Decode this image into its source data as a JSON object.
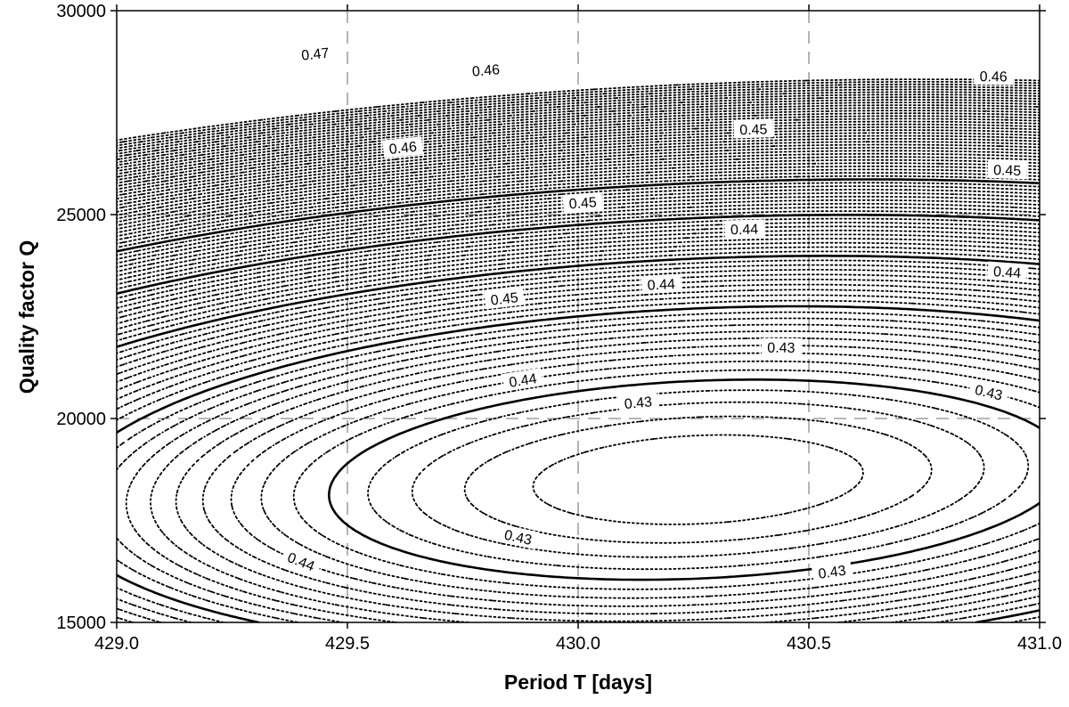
{
  "chart_data": {
    "type": "contour",
    "xlabel": "Period T [days]",
    "ylabel": "Quality factor Q",
    "xlim": [
      429.0,
      431.0
    ],
    "ylim": [
      15000,
      30000
    ],
    "x_ticks": [
      429.0,
      429.5,
      430.0,
      430.5,
      431.0
    ],
    "x_tick_labels": [
      "429.0",
      "429.5",
      "430.0",
      "430.5",
      "431.0"
    ],
    "y_ticks": [
      15000,
      20000,
      25000,
      30000
    ],
    "y_tick_labels": [
      "15000",
      "20000",
      "25000",
      "30000"
    ],
    "grid": "dashed",
    "minimum": {
      "x": 430.26,
      "y": 18500,
      "value": 0.425
    },
    "solid_levels": [
      0.43,
      0.44,
      0.45,
      0.46,
      0.47
    ],
    "dotted_level_step": 0.001,
    "contour_labels": [
      {
        "text": "0.47",
        "x": 429.43,
        "y": 28950
      },
      {
        "text": "0.46",
        "x": 429.62,
        "y": 26650
      },
      {
        "text": "0.46",
        "x": 429.8,
        "y": 28550
      },
      {
        "text": "0.46",
        "x": 430.9,
        "y": 28400
      },
      {
        "text": "0.45",
        "x": 429.84,
        "y": 22950
      },
      {
        "text": "0.45",
        "x": 430.01,
        "y": 25300
      },
      {
        "text": "0.45",
        "x": 430.38,
        "y": 27100
      },
      {
        "text": "0.45",
        "x": 430.93,
        "y": 26100
      },
      {
        "text": "0.44",
        "x": 429.88,
        "y": 20950
      },
      {
        "text": "0.44",
        "x": 430.18,
        "y": 23300
      },
      {
        "text": "0.44",
        "x": 430.36,
        "y": 24650
      },
      {
        "text": "0.44",
        "x": 430.93,
        "y": 23600
      },
      {
        "text": "0.44",
        "x": 429.4,
        "y": 16500
      },
      {
        "text": "0.43",
        "x": 430.13,
        "y": 20400
      },
      {
        "text": "0.43",
        "x": 430.44,
        "y": 21750
      },
      {
        "text": "0.43",
        "x": 430.89,
        "y": 20650
      },
      {
        "text": "0.43",
        "x": 429.87,
        "y": 17100
      },
      {
        "text": "0.43",
        "x": 430.55,
        "y": 16250
      }
    ]
  }
}
